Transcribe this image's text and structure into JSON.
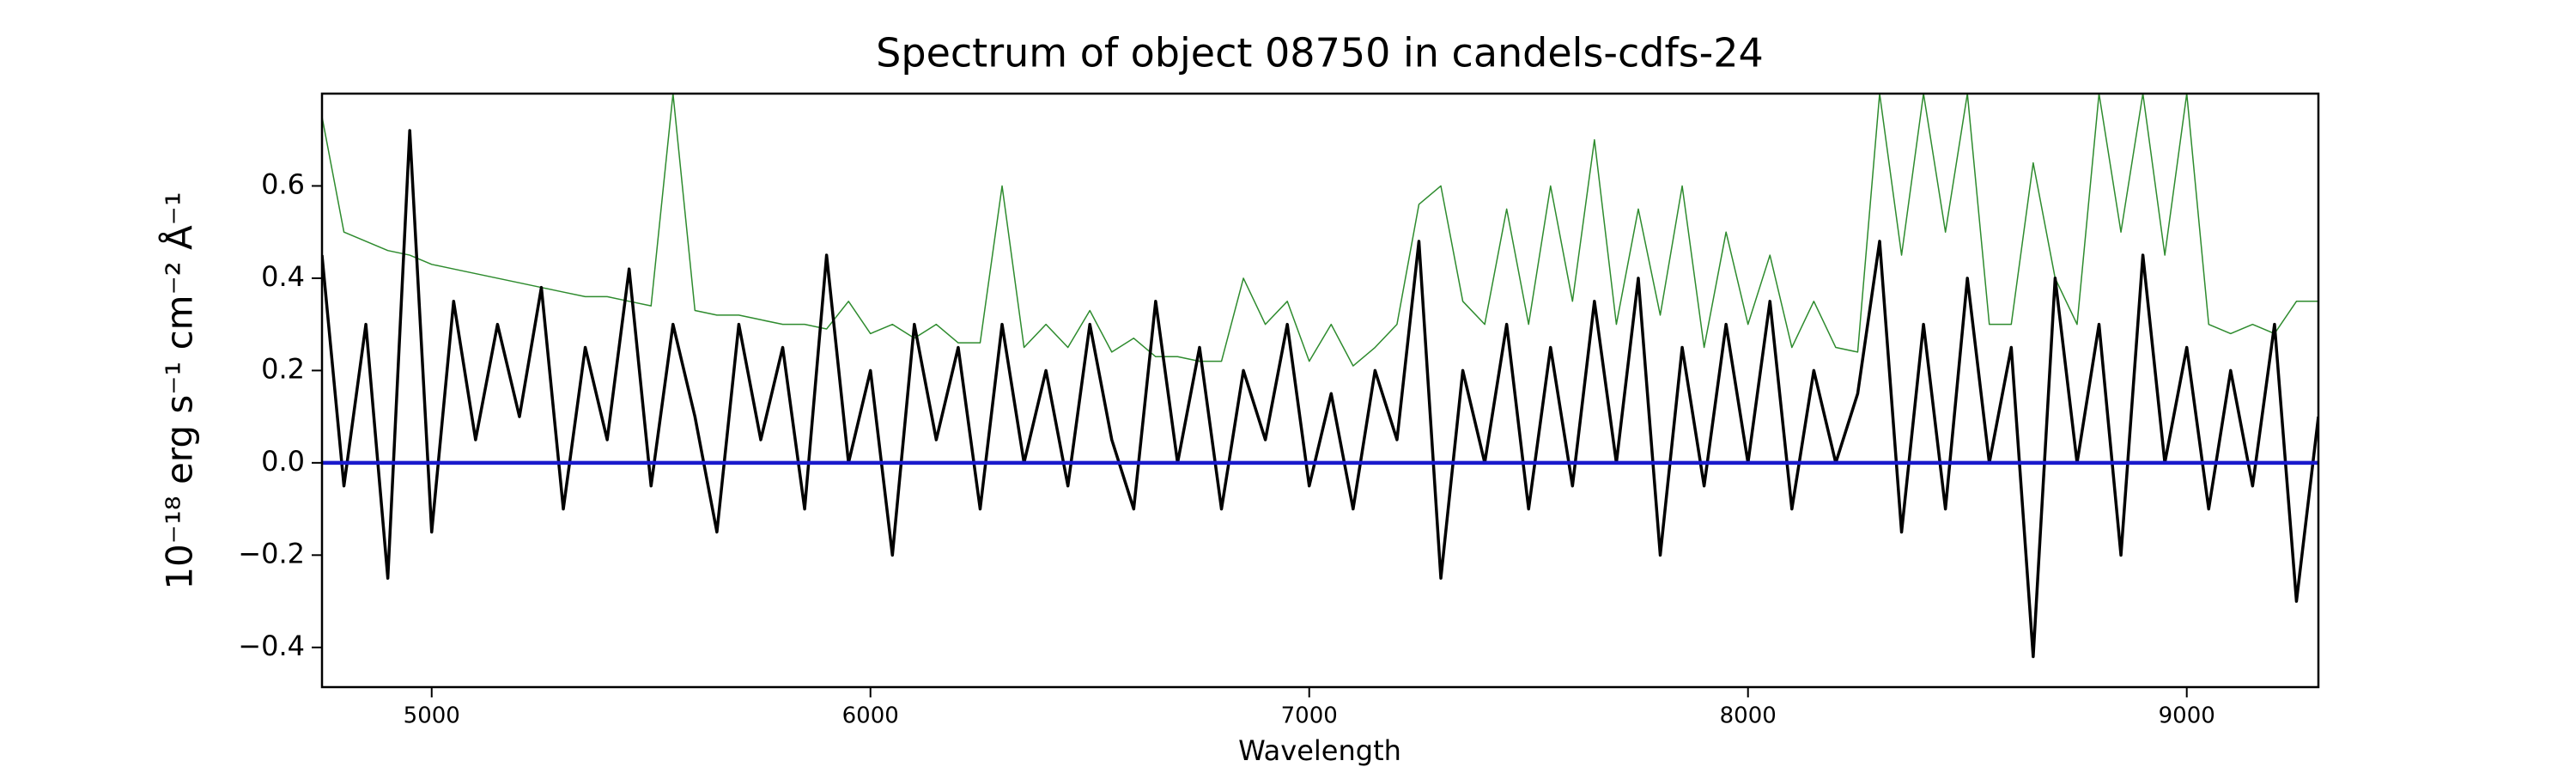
{
  "chart_data": {
    "type": "line",
    "title": "Spectrum of object 08750 in candels-cdfs-24",
    "x_label": "Wavelength",
    "y_label": "10⁻¹⁸ erg s⁻¹ cm⁻² Å⁻¹",
    "x": [
      4750,
      4800,
      4850,
      4900,
      4950,
      5000,
      5050,
      5100,
      5150,
      5200,
      5250,
      5300,
      5350,
      5400,
      5450,
      5500,
      5550,
      5600,
      5650,
      5700,
      5750,
      5800,
      5850,
      5900,
      5950,
      6000,
      6050,
      6100,
      6150,
      6200,
      6250,
      6300,
      6350,
      6400,
      6450,
      6500,
      6550,
      6600,
      6650,
      6700,
      6750,
      6800,
      6850,
      6900,
      6950,
      7000,
      7050,
      7100,
      7150,
      7200,
      7250,
      7300,
      7350,
      7400,
      7450,
      7500,
      7550,
      7600,
      7650,
      7700,
      7750,
      7800,
      7850,
      7900,
      7950,
      8000,
      8050,
      8100,
      8150,
      8200,
      8250,
      8300,
      8350,
      8400,
      8450,
      8500,
      8550,
      8600,
      8650,
      8700,
      8750,
      8800,
      8850,
      8900,
      8950,
      9000,
      9050,
      9100,
      9150,
      9200,
      9250,
      9300
    ],
    "series": [
      {
        "color": "#2e8b2e",
        "values": [
          0.75,
          0.5,
          0.48,
          0.46,
          0.45,
          0.43,
          0.42,
          0.41,
          0.4,
          0.39,
          0.38,
          0.37,
          0.36,
          0.36,
          0.35,
          0.34,
          0.8,
          0.33,
          0.32,
          0.32,
          0.31,
          0.3,
          0.3,
          0.29,
          0.35,
          0.28,
          0.3,
          0.27,
          0.3,
          0.26,
          0.26,
          0.6,
          0.25,
          0.3,
          0.25,
          0.33,
          0.24,
          0.27,
          0.23,
          0.23,
          0.22,
          0.22,
          0.4,
          0.3,
          0.35,
          0.22,
          0.3,
          0.21,
          0.25,
          0.3,
          0.56,
          0.6,
          0.35,
          0.3,
          0.55,
          0.3,
          0.6,
          0.35,
          0.7,
          0.3,
          0.55,
          0.32,
          0.6,
          0.25,
          0.5,
          0.3,
          0.45,
          0.25,
          0.35,
          0.25,
          0.24,
          0.8,
          0.45,
          0.8,
          0.5,
          0.8,
          0.3,
          0.3,
          0.65,
          0.4,
          0.3,
          0.8,
          0.5,
          0.8,
          0.45,
          0.8,
          0.3,
          0.28,
          0.3,
          0.28,
          0.35,
          0.35
        ]
      },
      {
        "color": "#000000",
        "values": [
          0.45,
          -0.05,
          0.3,
          -0.25,
          0.72,
          -0.15,
          0.35,
          0.05,
          0.3,
          0.1,
          0.38,
          -0.1,
          0.25,
          0.05,
          0.42,
          -0.05,
          0.3,
          0.1,
          -0.15,
          0.3,
          0.05,
          0.25,
          -0.1,
          0.45,
          0,
          0.2,
          -0.2,
          0.3,
          0.05,
          0.25,
          -0.1,
          0.3,
          0,
          0.2,
          -0.05,
          0.3,
          0.05,
          -0.1,
          0.35,
          0,
          0.25,
          -0.1,
          0.2,
          0.05,
          0.3,
          -0.05,
          0.15,
          -0.1,
          0.2,
          0.05,
          0.48,
          -0.25,
          0.2,
          0,
          0.3,
          -0.1,
          0.25,
          -0.05,
          0.35,
          0,
          0.4,
          -0.2,
          0.25,
          -0.05,
          0.3,
          0,
          0.35,
          -0.1,
          0.2,
          0,
          0.15,
          0.48,
          -0.15,
          0.3,
          -0.1,
          0.4,
          0,
          0.25,
          -0.42,
          0.4,
          0,
          0.3,
          -0.2,
          0.45,
          0,
          0.25,
          -0.1,
          0.2,
          -0.05,
          0.3,
          -0.3,
          0.1
        ]
      },
      {
        "color": "#1a1acc",
        "values": [
          0,
          0,
          0,
          0,
          0,
          0,
          0,
          0,
          0,
          0,
          0,
          0,
          0,
          0,
          0,
          0,
          0,
          0,
          0,
          0,
          0,
          0,
          0,
          0,
          0,
          0,
          0,
          0,
          0,
          0,
          0,
          0,
          0,
          0,
          0,
          0,
          0,
          0,
          0,
          0,
          0,
          0,
          0,
          0,
          0,
          0,
          0,
          0,
          0,
          0,
          0,
          0,
          0,
          0,
          0,
          0,
          0,
          0,
          0,
          0,
          0,
          0,
          0,
          0,
          0,
          0,
          0,
          0,
          0,
          0,
          0,
          0,
          0,
          0,
          0,
          0,
          0,
          0,
          0,
          0,
          0,
          0,
          0,
          0,
          0,
          0,
          0,
          0,
          0,
          0,
          0,
          0
        ]
      }
    ],
    "xlim": [
      4750,
      9300
    ],
    "ylim": [
      -0.486,
      0.8
    ],
    "xticks": [
      5000,
      6000,
      7000,
      8000,
      9000
    ],
    "yticks": [
      {
        "value": -0.4,
        "label": "−0.4"
      },
      {
        "value": -0.2,
        "label": "−0.2"
      },
      {
        "value": 0.0,
        "label": "0.0"
      },
      {
        "value": 0.2,
        "label": "0.2"
      },
      {
        "value": 0.4,
        "label": "0.4"
      },
      {
        "value": 0.6,
        "label": "0.6"
      }
    ],
    "grid": false
  }
}
